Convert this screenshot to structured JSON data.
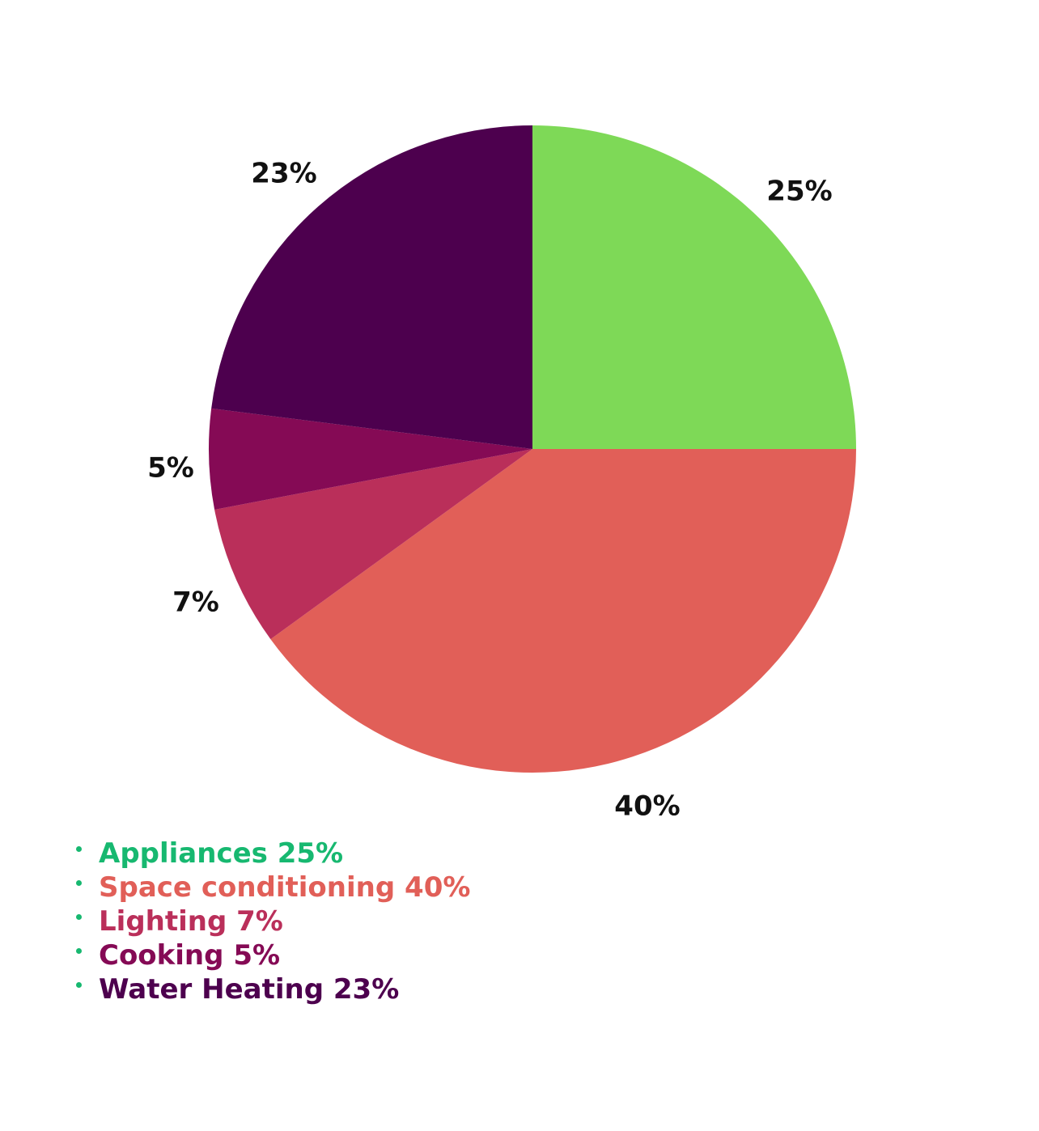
{
  "chart_data": {
    "type": "pie",
    "categories": [
      "Appliances",
      "Space conditioning",
      "Lighting",
      "Cooking",
      "Water Heating"
    ],
    "values": [
      25,
      40,
      7,
      5,
      23
    ],
    "slice_labels": [
      "25%",
      "40%",
      "7%",
      "5%",
      "23%"
    ],
    "colors": [
      "#7ed957",
      "#e15f58",
      "#ba2f5a",
      "#850a55",
      "#4d004e"
    ],
    "start": "12 o'clock",
    "direction": "clockwise",
    "legend": {
      "placement": "bottom-left",
      "bullet_color": "#17b870",
      "items": [
        {
          "label": "Appliances 25%",
          "color": "#17b870"
        },
        {
          "label": "Space conditioning 40%",
          "color": "#e15f58"
        },
        {
          "label": "Lighting 7%",
          "color": "#ba2f5a"
        },
        {
          "label": "Cooking 5%",
          "color": "#850a55"
        },
        {
          "label": "Water Heating 23%",
          "color": "#4d004e"
        }
      ]
    }
  }
}
